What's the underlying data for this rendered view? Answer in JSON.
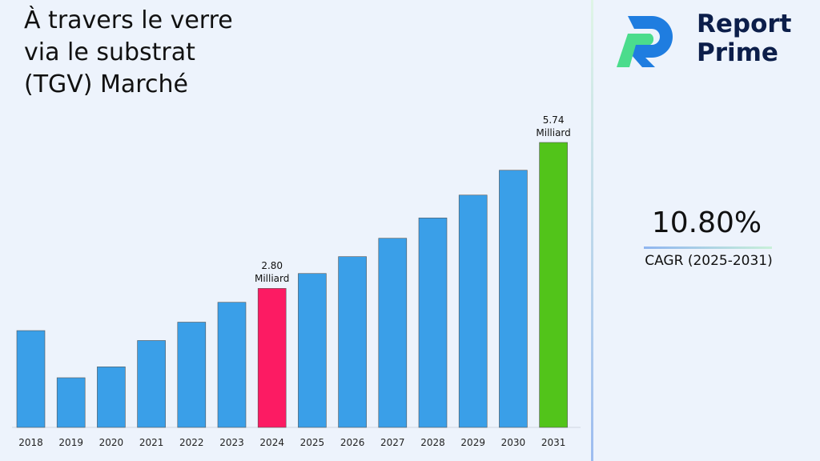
{
  "chart_data": {
    "type": "bar",
    "title": "À travers le verre via le substrat (TGV) Marché",
    "categories": [
      "2018",
      "2019",
      "2020",
      "2021",
      "2022",
      "2023",
      "2024",
      "2025",
      "2026",
      "2027",
      "2028",
      "2029",
      "2030",
      "2031"
    ],
    "values": [
      1.95,
      1.0,
      1.22,
      1.75,
      2.12,
      2.52,
      2.8,
      3.1,
      3.44,
      3.81,
      4.22,
      4.68,
      5.18,
      5.74
    ],
    "value_labels": [
      null,
      null,
      null,
      null,
      null,
      null,
      "2.80 Milliard",
      null,
      null,
      null,
      null,
      null,
      null,
      "5.74 Milliard"
    ],
    "colors": [
      "#3a9fe8",
      "#3a9fe8",
      "#3a9fe8",
      "#3a9fe8",
      "#3a9fe8",
      "#3a9fe8",
      "#fc1b63",
      "#3a9fe8",
      "#3a9fe8",
      "#3a9fe8",
      "#3a9fe8",
      "#3a9fe8",
      "#3a9fe8",
      "#52c41a"
    ]
  },
  "cagr": {
    "value": "10.80%",
    "label": "CAGR (2025-2031)"
  },
  "logo": {
    "text": "Report Prime"
  }
}
